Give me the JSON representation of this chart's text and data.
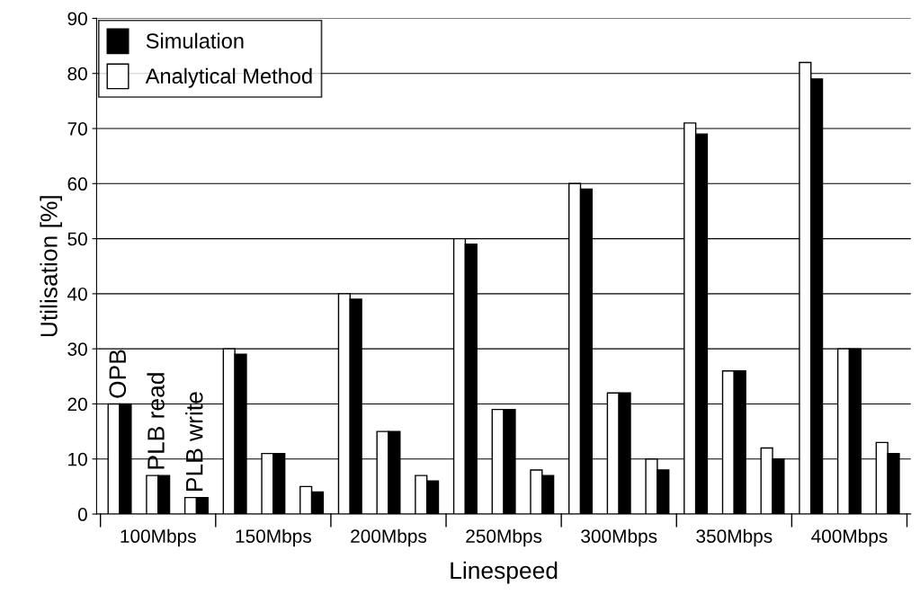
{
  "chart_data": {
    "type": "bar",
    "xlabel": "Linespeed",
    "ylabel": "Utilisation [%]",
    "categories": [
      null,
      "100Mbps",
      null,
      null,
      "150Mbps",
      null,
      null,
      "200Mbps",
      null,
      null,
      "250Mbps",
      null,
      null,
      "300Mbps",
      null,
      null,
      "350Mbps",
      null,
      null,
      "400Mbps",
      null
    ],
    "series": [
      {
        "name": "Analytical Method",
        "color": "#ffffff",
        "values": [
          20,
          7,
          3,
          30,
          11,
          5,
          40,
          15,
          7,
          50,
          19,
          8,
          60,
          22,
          10,
          71,
          26,
          12,
          82,
          30,
          13
        ]
      },
      {
        "name": "Simulation",
        "color": "#000000",
        "values": [
          20,
          7,
          3,
          29,
          11,
          4,
          39,
          15,
          6,
          49,
          19,
          7,
          59,
          22,
          8,
          69,
          26,
          10,
          79,
          30,
          11
        ]
      }
    ],
    "ylim": [
      0,
      90
    ],
    "yticks": [
      0,
      10,
      20,
      30,
      40,
      50,
      60,
      70,
      80,
      90
    ],
    "grid": "y",
    "legend": "top left",
    "annotations": [
      "OPB",
      "PLB read",
      "PLB write"
    ]
  }
}
